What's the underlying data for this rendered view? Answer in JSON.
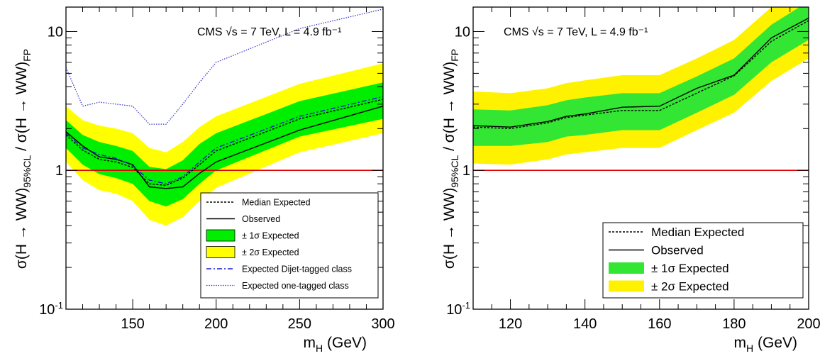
{
  "colors": {
    "band_1sigma": "#33e633",
    "band_2sigma": "#fff200",
    "left_green": "#00ee00",
    "left_yellow": "#ffff00",
    "reference_line": "#dd0000",
    "dijet_line": "#1a1acc",
    "onetag_line": "#3a3ad0",
    "axis": "#000000"
  },
  "chart_data": [
    {
      "type": "line",
      "annotation": "CMS √s = 7 TeV, L = 4.9 fb⁻¹",
      "xlabel": "m_H (GeV)",
      "ylabel": "σ(H → WW)_95%CL / σ(H → WW)_FP",
      "xlim": [
        110,
        300
      ],
      "ylim": [
        0.1,
        15
      ],
      "log_y": true,
      "grid": false,
      "legend_position": "bottom-right",
      "x_ticks": [
        150,
        200,
        250,
        300
      ],
      "y_ticks": [
        {
          "value": 0.1,
          "base": "10",
          "exp": "-1"
        },
        {
          "value": 1,
          "base": "1",
          "exp": ""
        },
        {
          "value": 10,
          "base": "10",
          "exp": ""
        }
      ],
      "reference_line": 1,
      "x": [
        110,
        120,
        130,
        140,
        150,
        160,
        170,
        180,
        190,
        200,
        250,
        300
      ],
      "legend": [
        {
          "key": "median",
          "label": "Median Expected"
        },
        {
          "key": "observed",
          "label": "Observed"
        },
        {
          "key": "band1",
          "label": "± 1σ Expected"
        },
        {
          "key": "band2",
          "label": "± 2σ Expected"
        },
        {
          "key": "dijet",
          "label": "Expected Dijet-tagged class"
        },
        {
          "key": "onetag",
          "label": "Expected one-tagged class"
        }
      ],
      "series": [
        {
          "key": "median",
          "values": [
            1.8,
            1.4,
            1.2,
            1.15,
            1.05,
            0.8,
            0.78,
            0.88,
            1.1,
            1.38,
            2.35,
            3.25
          ]
        },
        {
          "key": "observed",
          "values": [
            1.9,
            1.5,
            1.25,
            1.2,
            1.1,
            0.76,
            0.74,
            0.76,
            0.95,
            1.15,
            1.95,
            2.9
          ]
        },
        {
          "key": "dijet",
          "values": [
            1.85,
            1.45,
            1.3,
            1.22,
            1.08,
            0.85,
            0.8,
            0.9,
            1.15,
            1.45,
            2.45,
            3.4
          ]
        },
        {
          "key": "onetag",
          "values": [
            5.5,
            2.9,
            3.1,
            3.0,
            2.9,
            2.15,
            2.15,
            3.0,
            4.3,
            6.0,
            10.5,
            14.5
          ]
        }
      ],
      "band1": {
        "lo": [
          1.45,
          1.1,
          0.94,
          0.88,
          0.8,
          0.6,
          0.55,
          0.62,
          0.8,
          1.0,
          1.75,
          2.35
        ],
        "hi": [
          2.3,
          1.8,
          1.6,
          1.5,
          1.38,
          1.06,
          1.02,
          1.18,
          1.55,
          1.85,
          3.15,
          4.3
        ]
      },
      "band2": {
        "lo": [
          1.15,
          0.85,
          0.72,
          0.68,
          0.6,
          0.44,
          0.4,
          0.46,
          0.6,
          0.75,
          1.35,
          1.85
        ],
        "hi": [
          2.9,
          2.3,
          2.1,
          2.0,
          1.85,
          1.45,
          1.35,
          1.6,
          2.05,
          2.45,
          4.2,
          5.9
        ]
      }
    },
    {
      "type": "line",
      "annotation": "CMS √s = 7 TeV, L = 4.9 fb⁻¹",
      "xlabel": "m_H (GeV)",
      "ylabel": "σ(H → WW)_95%CL / σ(H → WW)_FP",
      "xlim": [
        110,
        200
      ],
      "ylim": [
        0.1,
        15
      ],
      "log_y": true,
      "grid": false,
      "legend_position": "bottom-right",
      "x_ticks": [
        120,
        140,
        160,
        180,
        200
      ],
      "y_ticks": [
        {
          "value": 0.1,
          "base": "10",
          "exp": "-1"
        },
        {
          "value": 1,
          "base": "1",
          "exp": ""
        },
        {
          "value": 10,
          "base": "10",
          "exp": ""
        }
      ],
      "reference_line": 1,
      "x": [
        110,
        120,
        130,
        135,
        140,
        150,
        160,
        170,
        180,
        190,
        200
      ],
      "legend": [
        {
          "key": "median",
          "label": "Median Expected"
        },
        {
          "key": "observed",
          "label": "Observed"
        },
        {
          "key": "band1",
          "label": "± 1σ Expected"
        },
        {
          "key": "band2",
          "label": "± 2σ Expected"
        }
      ],
      "series": [
        {
          "key": "median",
          "values": [
            2.05,
            2.0,
            2.2,
            2.4,
            2.5,
            2.7,
            2.7,
            3.6,
            4.8,
            8.5,
            12.0
          ]
        },
        {
          "key": "observed",
          "values": [
            2.1,
            2.05,
            2.25,
            2.45,
            2.55,
            2.85,
            2.9,
            3.9,
            4.85,
            9.0,
            12.5
          ]
        }
      ],
      "band1": {
        "lo": [
          1.5,
          1.5,
          1.6,
          1.75,
          1.8,
          1.95,
          1.95,
          2.6,
          3.5,
          6.0,
          8.7
        ],
        "hi": [
          2.75,
          2.7,
          2.95,
          3.2,
          3.35,
          3.6,
          3.6,
          4.75,
          6.4,
          11.2,
          16.5
        ]
      },
      "band2": {
        "lo": [
          1.12,
          1.1,
          1.2,
          1.3,
          1.35,
          1.45,
          1.45,
          1.95,
          2.6,
          4.4,
          6.4
        ],
        "hi": [
          3.7,
          3.6,
          3.9,
          4.25,
          4.45,
          4.85,
          4.85,
          6.4,
          8.7,
          15.0,
          22.0
        ]
      }
    }
  ]
}
